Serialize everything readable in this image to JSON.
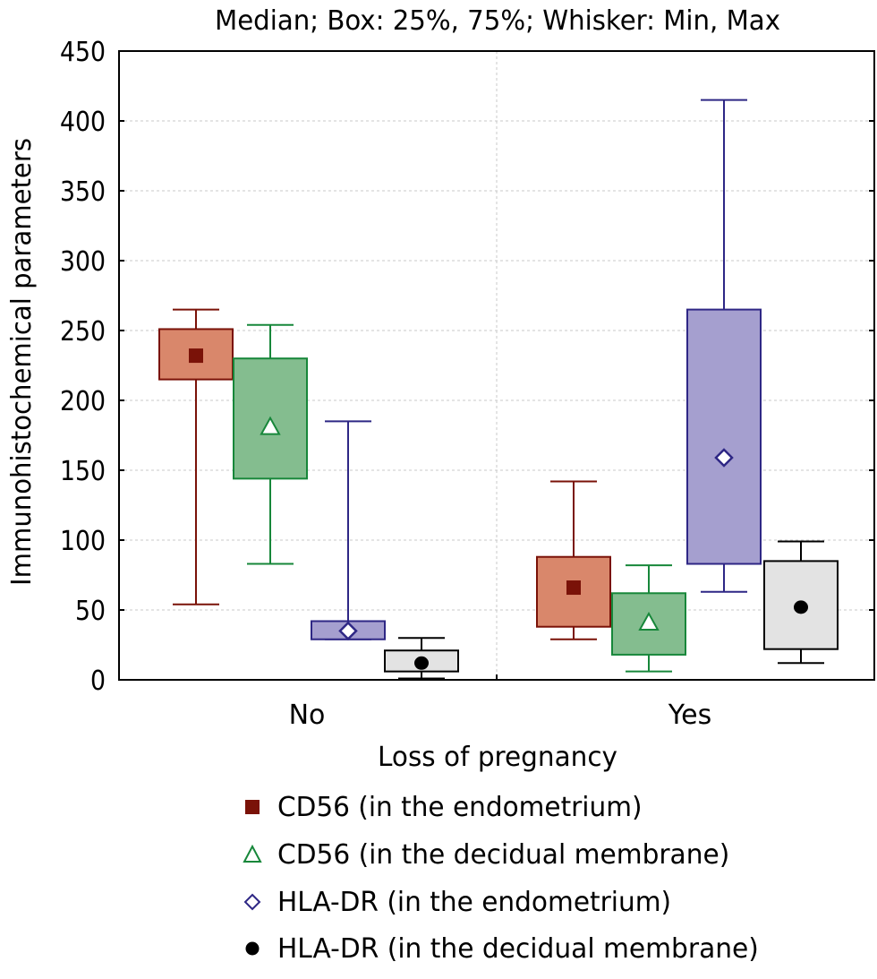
{
  "chart_data": {
    "type": "boxplot",
    "title": "Median; Box: 25%, 75%; Whisker: Min, Max",
    "xlabel": "Loss of pregnancy",
    "ylabel": "Immunohistochemical parameters",
    "ylim": [
      0,
      450
    ],
    "yticks": [
      0,
      50,
      100,
      150,
      200,
      250,
      300,
      350,
      400,
      450
    ],
    "ytick_labels": [
      "0",
      "50",
      "100",
      "150",
      "200",
      "250",
      "300",
      "350",
      "400",
      "450"
    ],
    "categories": [
      "No",
      "Yes"
    ],
    "grid": true,
    "legend_position": "bottom",
    "series": [
      {
        "name": "CD56 (in the endometrium)",
        "marker": "square",
        "box_color": "#d9876b",
        "line_color": "#7a1208",
        "marker_fill": "#7a1208",
        "data": [
          {
            "category": "No",
            "min": 54,
            "q1": 215,
            "median": 232,
            "q3": 251,
            "max": 265
          },
          {
            "category": "Yes",
            "min": 29,
            "q1": 38,
            "median": 66,
            "q3": 88,
            "max": 142
          }
        ]
      },
      {
        "name": "CD56 (in the decidual membrane)",
        "marker": "triangle",
        "box_color": "#84bd8f",
        "line_color": "#17873a",
        "marker_fill": "#ffffff",
        "data": [
          {
            "category": "No",
            "min": 83,
            "q1": 144,
            "median": 181,
            "q3": 230,
            "max": 254
          },
          {
            "category": "Yes",
            "min": 6,
            "q1": 18,
            "median": 41,
            "q3": 62,
            "max": 82
          }
        ]
      },
      {
        "name": "HLA-DR (in the endometrium)",
        "marker": "diamond",
        "box_color": "#a59fcf",
        "line_color": "#2e2785",
        "marker_fill": "#ffffff",
        "data": [
          {
            "category": "No",
            "min": 29,
            "q1": 29,
            "median": 35,
            "q3": 42,
            "max": 185
          },
          {
            "category": "Yes",
            "min": 63,
            "q1": 83,
            "median": 159,
            "q3": 265,
            "max": 415
          }
        ]
      },
      {
        "name": "HLA-DR (in the decidual membrane)",
        "marker": "circle",
        "box_color": "#e3e3e3",
        "line_color": "#000000",
        "marker_fill": "#000000",
        "data": [
          {
            "category": "No",
            "min": 1,
            "q1": 6,
            "median": 12,
            "q3": 21,
            "max": 30
          },
          {
            "category": "Yes",
            "min": 12,
            "q1": 22,
            "median": 52,
            "q3": 85,
            "max": 99
          }
        ]
      }
    ]
  }
}
